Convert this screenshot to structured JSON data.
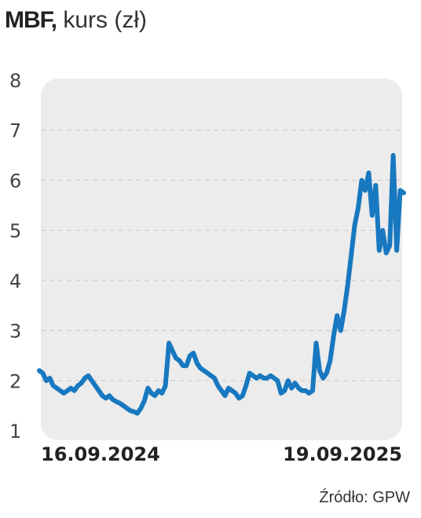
{
  "title": {
    "ticker": "MBF,",
    "unit": "kurs (zł)"
  },
  "source": "Źródło: GPW",
  "colors": {
    "line": "#1878c0",
    "plot_bg": "#ececec",
    "grid": "#c8c8c8"
  },
  "chart_data": {
    "type": "line",
    "title": "MBF, kurs (zł)",
    "xlabel": "",
    "ylabel": "",
    "ylim": [
      1,
      8
    ],
    "yticks": [
      "1",
      "2",
      "3",
      "4",
      "5",
      "6",
      "7",
      "8"
    ],
    "xtick_labels": [
      "16.09.2024",
      "19.09.2025"
    ],
    "grid": true,
    "series": [
      {
        "values": [
          2.2,
          2.15,
          2.0,
          2.05,
          1.9,
          1.85,
          1.8,
          1.75,
          1.8,
          1.85,
          1.8,
          1.9,
          1.95,
          2.05,
          2.1,
          2.0,
          1.9,
          1.8,
          1.7,
          1.65,
          1.7,
          1.62,
          1.58,
          1.55,
          1.5,
          1.45,
          1.4,
          1.38,
          1.35,
          1.45,
          1.6,
          1.85,
          1.75,
          1.7,
          1.8,
          1.75,
          1.9,
          2.75,
          2.6,
          2.45,
          2.4,
          2.3,
          2.3,
          2.5,
          2.55,
          2.35,
          2.25,
          2.2,
          2.15,
          2.1,
          2.05,
          1.9,
          1.8,
          1.7,
          1.85,
          1.8,
          1.75,
          1.65,
          1.7,
          1.9,
          2.15,
          2.1,
          2.05,
          2.1,
          2.05,
          2.05,
          2.1,
          2.05,
          2.0,
          1.75,
          1.8,
          2.0,
          1.85,
          1.95,
          1.85,
          1.8,
          1.8,
          1.75,
          1.8,
          2.75,
          2.2,
          2.05,
          2.15,
          2.4,
          2.9,
          3.3,
          3.0,
          3.4,
          3.9,
          4.5,
          5.1,
          5.45,
          6.0,
          5.8,
          6.15,
          5.3,
          5.9,
          4.6,
          5.0,
          4.55,
          4.7,
          6.5,
          4.6,
          5.8,
          5.75
        ]
      }
    ]
  }
}
